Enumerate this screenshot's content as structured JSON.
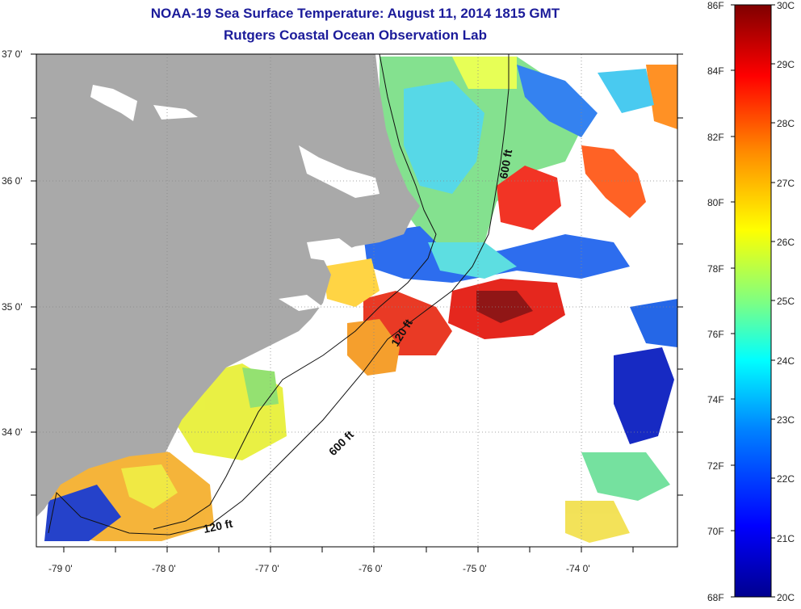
{
  "title": "NOAA-19 Sea Surface Temperature:  August 11, 2014 1815 GMT",
  "subtitle": "Rutgers Coastal Ocean Observation Lab",
  "latitude_labels": [
    "37 0'",
    "36 0'",
    "35 0'",
    "34 0'"
  ],
  "longitude_labels": [
    "-79 0'",
    "-78 0'",
    "-77 0'",
    "-76 0'",
    "-75 0'",
    "-74 0'"
  ],
  "contour_labels": {
    "c600_north": "600 ft",
    "c600_south": "600 ft",
    "c120_south": "120 ft",
    "c120_mid": "120 ft"
  },
  "colorbar": {
    "fahrenheit_ticks": [
      "86F",
      "84F",
      "82F",
      "80F",
      "78F",
      "76F",
      "74F",
      "72F",
      "70F",
      "68F"
    ],
    "celsius_ticks": [
      "30C",
      "29C",
      "28C",
      "27C",
      "26C",
      "25C",
      "24C",
      "23C",
      "22C",
      "21C",
      "20C"
    ],
    "colors": [
      "#7f0000",
      "#ff0000",
      "#ff8c00",
      "#ffff00",
      "#80ff80",
      "#00ffff",
      "#0080ff",
      "#0000ff",
      "#00008f"
    ]
  },
  "colors": {
    "land": "#a9a9a9",
    "title": "#1b1b9a",
    "no_data": "#ffffff"
  }
}
